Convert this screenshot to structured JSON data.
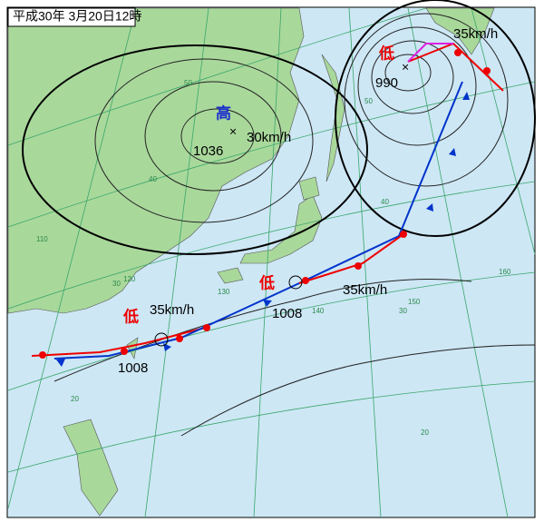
{
  "header": {
    "title": "平成30年 3月20日12時"
  },
  "systems": [
    {
      "symbol": "高",
      "pressure": 1036,
      "speed": "30km/h"
    },
    {
      "symbol": "低",
      "pressure": 990,
      "speed": "35km/h"
    },
    {
      "symbol": "低",
      "pressure": 1008,
      "speed": "35km/h"
    },
    {
      "symbol": "低",
      "pressure": 1008,
      "speed": "35km/h"
    }
  ],
  "grid_labels": {
    "latitudes": [
      "50",
      "40",
      "30",
      "20",
      "50",
      "40",
      "30",
      "20"
    ],
    "longitudes": [
      "110",
      "120",
      "130",
      "140",
      "150",
      "160"
    ]
  }
}
